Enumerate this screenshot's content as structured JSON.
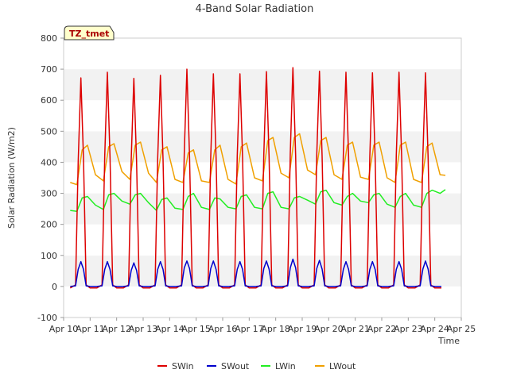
{
  "chart_data": {
    "type": "line",
    "title": "4-Band Solar Radiation",
    "xlabel": "Time",
    "ylabel": "Solar Radiation (W/m2)",
    "annotation": "TZ_tmet",
    "xlim": [
      10,
      25
    ],
    "ylim": [
      -100,
      800
    ],
    "x_ticks": [
      10,
      11,
      12,
      13,
      14,
      15,
      16,
      17,
      18,
      19,
      20,
      21,
      22,
      23,
      24,
      25
    ],
    "x_tick_labels": [
      "Apr 10",
      "Apr 11",
      "Apr 12",
      "Apr 13",
      "Apr 14",
      "Apr 15",
      "Apr 16",
      "Apr 17",
      "Apr 18",
      "Apr 19",
      "Apr 20",
      "Apr 21",
      "Apr 22",
      "Apr 23",
      "Apr 24",
      "Apr 25"
    ],
    "y_ticks": [
      -100,
      0,
      100,
      200,
      300,
      400,
      500,
      600,
      700,
      800
    ],
    "y_tick_labels": [
      "-100",
      "0",
      "100",
      "200",
      "300",
      "400",
      "500",
      "600",
      "700",
      "800"
    ],
    "grid": "horizontal bands",
    "legend": "bottom",
    "series": [
      {
        "name": "SWin",
        "color": "#dd0000",
        "x": [
          10.25,
          10.45,
          10.55,
          10.65,
          10.75,
          10.85,
          11.0,
          11.25,
          11.45,
          11.55,
          11.65,
          11.75,
          11.85,
          12.0,
          12.25,
          12.45,
          12.55,
          12.65,
          12.75,
          12.85,
          13.0,
          13.25,
          13.45,
          13.55,
          13.65,
          13.75,
          13.85,
          14.0,
          14.25,
          14.45,
          14.55,
          14.65,
          14.75,
          14.85,
          15.0,
          15.25,
          15.45,
          15.55,
          15.65,
          15.75,
          15.85,
          16.0,
          16.25,
          16.45,
          16.55,
          16.65,
          16.75,
          16.85,
          17.0,
          17.25,
          17.45,
          17.55,
          17.65,
          17.75,
          17.85,
          18.0,
          18.25,
          18.45,
          18.55,
          18.65,
          18.75,
          18.85,
          19.0,
          19.25,
          19.45,
          19.55,
          19.65,
          19.75,
          19.85,
          20.0,
          20.25,
          20.45,
          20.55,
          20.65,
          20.75,
          20.85,
          21.0,
          21.25,
          21.45,
          21.55,
          21.65,
          21.75,
          21.85,
          22.0,
          22.25,
          22.45,
          22.55,
          22.65,
          22.75,
          22.85,
          23.0,
          23.25,
          23.45,
          23.55,
          23.65,
          23.75,
          23.85,
          24.0,
          24.25
        ],
        "values": [
          -5,
          5,
          400,
          672,
          410,
          5,
          -5,
          -5,
          5,
          420,
          690,
          420,
          5,
          -5,
          -5,
          5,
          410,
          670,
          405,
          5,
          -5,
          -5,
          5,
          415,
          680,
          410,
          5,
          -5,
          -5,
          5,
          430,
          700,
          420,
          5,
          -5,
          -5,
          5,
          420,
          685,
          415,
          5,
          -5,
          -5,
          5,
          420,
          685,
          415,
          5,
          -5,
          -5,
          5,
          425,
          692,
          420,
          5,
          -5,
          -5,
          5,
          430,
          705,
          425,
          5,
          -5,
          -5,
          5,
          425,
          693,
          420,
          5,
          -5,
          -5,
          5,
          425,
          690,
          420,
          5,
          -5,
          -5,
          5,
          420,
          688,
          415,
          5,
          -5,
          -5,
          5,
          425,
          690,
          420,
          5,
          -5,
          -5,
          5,
          420,
          688,
          415,
          5,
          -5,
          -5
        ]
      },
      {
        "name": "SWout",
        "color": "#0000cc",
        "x": [
          10.25,
          10.45,
          10.55,
          10.65,
          10.75,
          10.85,
          11.0,
          11.25,
          11.45,
          11.55,
          11.65,
          11.75,
          11.85,
          12.0,
          12.25,
          12.45,
          12.55,
          12.65,
          12.75,
          12.85,
          13.0,
          13.25,
          13.45,
          13.55,
          13.65,
          13.75,
          13.85,
          14.0,
          14.25,
          14.45,
          14.55,
          14.65,
          14.75,
          14.85,
          15.0,
          15.25,
          15.45,
          15.55,
          15.65,
          15.75,
          15.85,
          16.0,
          16.25,
          16.45,
          16.55,
          16.65,
          16.75,
          16.85,
          17.0,
          17.25,
          17.45,
          17.55,
          17.65,
          17.75,
          17.85,
          18.0,
          18.25,
          18.45,
          18.55,
          18.65,
          18.75,
          18.85,
          19.0,
          19.25,
          19.45,
          19.55,
          19.65,
          19.75,
          19.85,
          20.0,
          20.25,
          20.45,
          20.55,
          20.65,
          20.75,
          20.85,
          21.0,
          21.25,
          21.45,
          21.55,
          21.65,
          21.75,
          21.85,
          22.0,
          22.25,
          22.45,
          22.55,
          22.65,
          22.75,
          22.85,
          23.0,
          23.25,
          23.45,
          23.55,
          23.65,
          23.75,
          23.85,
          24.0,
          24.25
        ],
        "values": [
          0,
          2,
          55,
          80,
          55,
          2,
          0,
          0,
          2,
          55,
          80,
          55,
          2,
          0,
          0,
          2,
          52,
          76,
          52,
          2,
          0,
          0,
          2,
          55,
          80,
          55,
          2,
          0,
          0,
          2,
          60,
          82,
          58,
          2,
          0,
          0,
          2,
          58,
          82,
          55,
          2,
          0,
          0,
          2,
          55,
          80,
          55,
          2,
          0,
          0,
          2,
          58,
          82,
          56,
          2,
          0,
          0,
          2,
          60,
          88,
          60,
          2,
          0,
          0,
          2,
          58,
          84,
          56,
          2,
          0,
          0,
          2,
          55,
          80,
          55,
          2,
          0,
          0,
          2,
          55,
          80,
          55,
          2,
          0,
          0,
          2,
          55,
          80,
          55,
          2,
          0,
          0,
          2,
          56,
          82,
          56,
          2,
          0,
          0
        ]
      },
      {
        "name": "LWin",
        "color": "#22ee22",
        "x": [
          10.25,
          10.5,
          10.7,
          10.9,
          11.2,
          11.5,
          11.7,
          11.9,
          12.2,
          12.5,
          12.7,
          12.9,
          13.2,
          13.5,
          13.7,
          13.9,
          14.2,
          14.5,
          14.7,
          14.9,
          15.2,
          15.5,
          15.7,
          15.9,
          16.2,
          16.5,
          16.7,
          16.9,
          17.2,
          17.5,
          17.7,
          17.9,
          18.2,
          18.5,
          18.7,
          18.9,
          19.2,
          19.5,
          19.7,
          19.9,
          20.2,
          20.5,
          20.7,
          20.9,
          21.2,
          21.5,
          21.7,
          21.9,
          22.2,
          22.5,
          22.7,
          22.9,
          23.2,
          23.5,
          23.7,
          23.9,
          24.2,
          24.4
        ],
        "values": [
          245,
          242,
          285,
          290,
          262,
          248,
          295,
          300,
          275,
          265,
          295,
          300,
          270,
          245,
          280,
          285,
          252,
          248,
          290,
          300,
          255,
          248,
          285,
          282,
          255,
          250,
          290,
          295,
          255,
          250,
          300,
          305,
          255,
          250,
          285,
          290,
          278,
          265,
          305,
          310,
          270,
          262,
          290,
          300,
          275,
          270,
          295,
          300,
          265,
          255,
          290,
          300,
          262,
          255,
          300,
          310,
          300,
          312
        ]
      },
      {
        "name": "LWout",
        "color": "#f0a000",
        "x": [
          10.25,
          10.5,
          10.7,
          10.9,
          11.2,
          11.5,
          11.7,
          11.9,
          12.2,
          12.5,
          12.7,
          12.9,
          13.2,
          13.5,
          13.7,
          13.9,
          14.2,
          14.5,
          14.7,
          14.9,
          15.2,
          15.5,
          15.7,
          15.9,
          16.2,
          16.5,
          16.7,
          16.9,
          17.2,
          17.5,
          17.7,
          17.9,
          18.2,
          18.5,
          18.7,
          18.9,
          19.2,
          19.5,
          19.7,
          19.9,
          20.2,
          20.5,
          20.7,
          20.9,
          21.2,
          21.5,
          21.7,
          21.9,
          22.2,
          22.5,
          22.7,
          22.9,
          23.2,
          23.5,
          23.7,
          23.9,
          24.2,
          24.4
        ],
        "values": [
          335,
          328,
          440,
          455,
          360,
          340,
          450,
          460,
          370,
          345,
          455,
          465,
          365,
          335,
          440,
          450,
          345,
          335,
          430,
          440,
          340,
          335,
          440,
          455,
          345,
          330,
          450,
          462,
          350,
          340,
          470,
          480,
          365,
          350,
          480,
          492,
          375,
          360,
          470,
          480,
          360,
          345,
          455,
          465,
          352,
          345,
          455,
          465,
          350,
          335,
          455,
          465,
          345,
          335,
          450,
          462,
          360,
          358
        ]
      }
    ]
  }
}
